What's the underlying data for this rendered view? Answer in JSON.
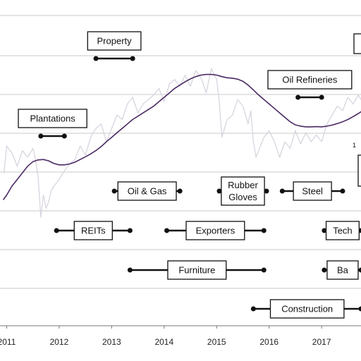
{
  "chart_data": {
    "type": "line",
    "title": "",
    "xlabel": "",
    "ylabel": "",
    "x_ticks": [
      "2011",
      "2012",
      "2013",
      "2014",
      "2015",
      "2016",
      "2017"
    ],
    "x_range": [
      2010.94,
      2017.75
    ],
    "y_range": [
      0,
      1
    ],
    "grid": "horizontal",
    "series": [
      {
        "style": "raw",
        "color": "#d9d4df",
        "x": [
          2010.95,
          2011.0,
          2011.1,
          2011.2,
          2011.3,
          2011.4,
          2011.5,
          2011.55,
          2011.6,
          2011.65,
          2011.7,
          2011.75,
          2011.8,
          2011.85,
          2011.9,
          2012.0,
          2012.1,
          2012.2,
          2012.3,
          2012.4,
          2012.5,
          2012.6,
          2012.7,
          2012.8,
          2012.9,
          2013.0,
          2013.1,
          2013.2,
          2013.3,
          2013.4,
          2013.5,
          2013.6,
          2013.7,
          2013.8,
          2013.9,
          2014.0,
          2014.1,
          2014.2,
          2014.3,
          2014.4,
          2014.5,
          2014.6,
          2014.7,
          2014.8,
          2014.9,
          2015.0,
          2015.05,
          2015.1,
          2015.2,
          2015.3,
          2015.4,
          2015.5,
          2015.6,
          2015.65,
          2015.7,
          2015.75,
          2015.8,
          2015.9,
          2016.0,
          2016.1,
          2016.2,
          2016.3,
          2016.4,
          2016.5,
          2016.6,
          2016.7,
          2016.8,
          2016.9,
          2017.0,
          2017.1,
          2017.2,
          2017.3,
          2017.4,
          2017.5,
          2017.6,
          2017.7,
          2017.75
        ],
        "y": [
          0.46,
          0.58,
          0.55,
          0.49,
          0.56,
          0.53,
          0.57,
          0.52,
          0.44,
          0.26,
          0.36,
          0.3,
          0.33,
          0.38,
          0.4,
          0.43,
          0.47,
          0.5,
          0.52,
          0.58,
          0.54,
          0.62,
          0.66,
          0.68,
          0.6,
          0.66,
          0.72,
          0.7,
          0.77,
          0.8,
          0.73,
          0.77,
          0.79,
          0.81,
          0.84,
          0.78,
          0.86,
          0.88,
          0.85,
          0.9,
          0.85,
          0.92,
          0.89,
          0.82,
          0.93,
          0.88,
          0.78,
          0.62,
          0.7,
          0.72,
          0.79,
          0.76,
          0.68,
          0.74,
          0.6,
          0.53,
          0.56,
          0.62,
          0.65,
          0.6,
          0.53,
          0.6,
          0.57,
          0.65,
          0.59,
          0.64,
          0.6,
          0.63,
          0.6,
          0.68,
          0.72,
          0.76,
          0.74,
          0.8,
          0.77,
          0.81,
          0.79
        ]
      },
      {
        "style": "smoothed",
        "color": "#4a2a63",
        "x": [
          2010.94,
          2011.0,
          2011.1,
          2011.2,
          2011.3,
          2011.4,
          2011.5,
          2011.6,
          2011.7,
          2011.8,
          2011.9,
          2012.0,
          2012.1,
          2012.2,
          2012.3,
          2012.4,
          2012.5,
          2012.6,
          2012.7,
          2012.8,
          2012.9,
          2013.0,
          2013.1,
          2013.2,
          2013.3,
          2013.4,
          2013.5,
          2013.6,
          2013.7,
          2013.8,
          2013.9,
          2014.0,
          2014.1,
          2014.2,
          2014.3,
          2014.4,
          2014.5,
          2014.6,
          2014.7,
          2014.8,
          2014.9,
          2015.0,
          2015.1,
          2015.2,
          2015.3,
          2015.4,
          2015.5,
          2015.6,
          2015.7,
          2015.8,
          2015.9,
          2016.0,
          2016.1,
          2016.2,
          2016.3,
          2016.4,
          2016.5,
          2016.6,
          2016.7,
          2016.8,
          2016.9,
          2017.0,
          2017.1,
          2017.2,
          2017.3,
          2017.4,
          2017.5,
          2017.6,
          2017.7,
          2017.75
        ],
        "y": [
          0.34,
          0.36,
          0.4,
          0.43,
          0.46,
          0.49,
          0.51,
          0.518,
          0.52,
          0.514,
          0.502,
          0.496,
          0.496,
          0.5,
          0.508,
          0.52,
          0.532,
          0.545,
          0.56,
          0.578,
          0.6,
          0.62,
          0.64,
          0.66,
          0.68,
          0.7,
          0.715,
          0.73,
          0.745,
          0.76,
          0.78,
          0.8,
          0.82,
          0.84,
          0.855,
          0.87,
          0.883,
          0.893,
          0.9,
          0.903,
          0.903,
          0.9,
          0.893,
          0.888,
          0.886,
          0.882,
          0.872,
          0.855,
          0.833,
          0.81,
          0.79,
          0.77,
          0.75,
          0.73,
          0.71,
          0.69,
          0.676,
          0.67,
          0.667,
          0.667,
          0.668,
          0.667,
          0.67,
          0.675,
          0.682,
          0.69,
          0.7,
          0.713,
          0.727,
          0.735
        ]
      }
    ],
    "annotations": [
      {
        "label": "Property",
        "start": 2012.7,
        "end": 2013.4,
        "row": 0
      },
      {
        "label": "Oil Refineries",
        "start": 2016.55,
        "end": 2017.0,
        "row": 1
      },
      {
        "label": "Plantations",
        "start": 2011.65,
        "end": 2012.1,
        "row": 2
      },
      {
        "label": "Oil & Gas",
        "start": 2013.05,
        "end": 2014.3,
        "row": 3
      },
      {
        "label": "Rubber Gloves",
        "start": 2015.05,
        "end": 2015.95,
        "row": 3
      },
      {
        "label": "Steel",
        "start": 2016.25,
        "end": 2017.4,
        "row": 3
      },
      {
        "label": "REITs",
        "start": 2011.95,
        "end": 2013.35,
        "row": 4
      },
      {
        "label": "Exporters",
        "start": 2014.05,
        "end": 2015.9,
        "row": 4
      },
      {
        "label": "Tech",
        "start": 2017.05,
        "end": 2017.75,
        "row": 4
      },
      {
        "label": "Furniture",
        "start": 2013.35,
        "end": 2015.9,
        "row": 5
      },
      {
        "label": "Ba",
        "start": 2017.05,
        "end": 2017.75,
        "row": 5
      },
      {
        "label": "Construction",
        "start": 2015.7,
        "end": 2017.75,
        "row": 6
      }
    ],
    "partial_label": "1",
    "partial_boxes": 1
  }
}
